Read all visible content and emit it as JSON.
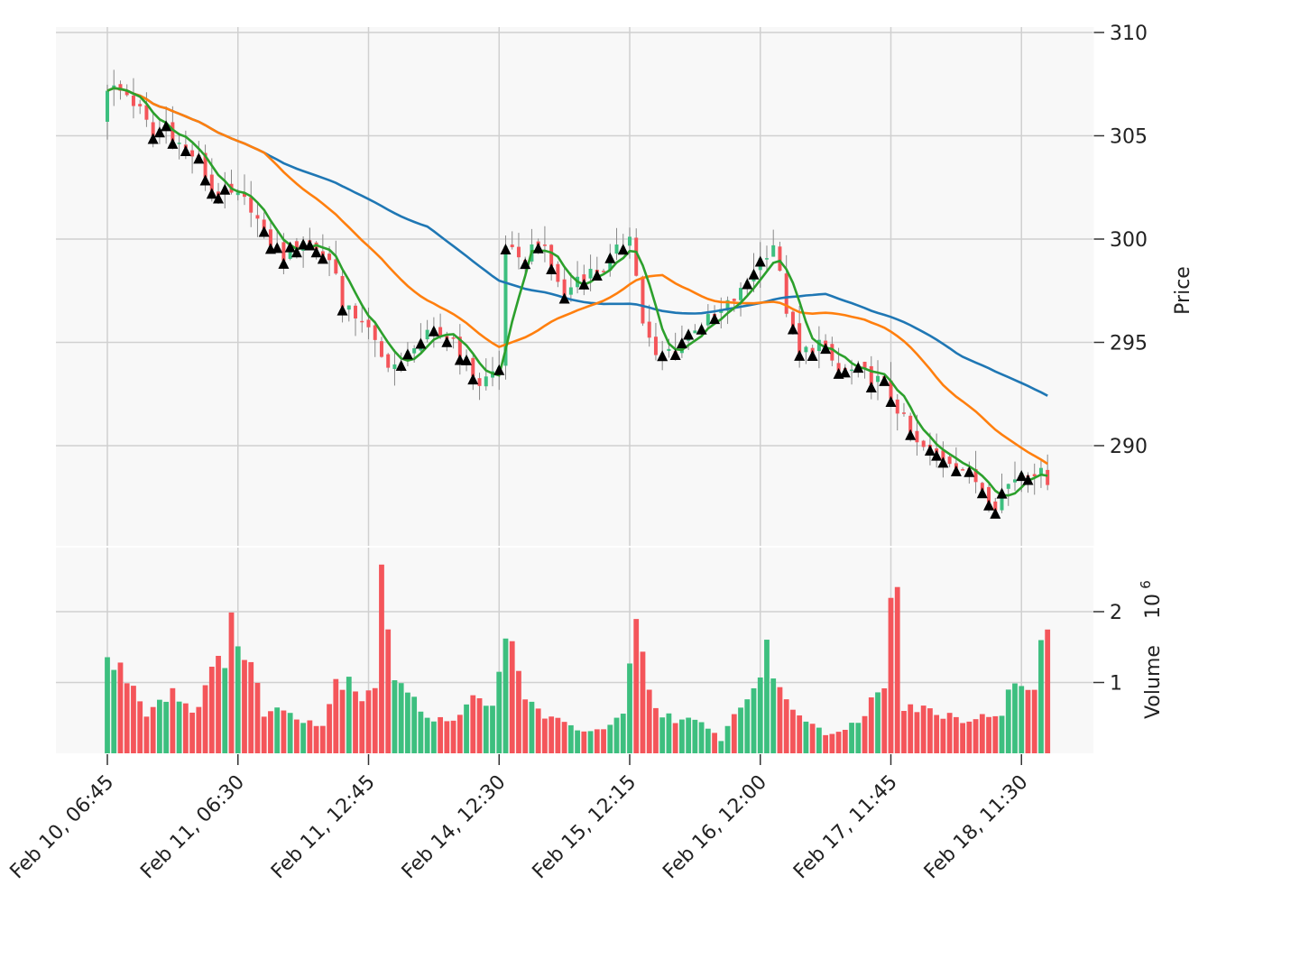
{
  "chart_data": {
    "type": "candlestick",
    "price_panel": {
      "ylabel": "Price",
      "ylim": [
        286,
        310
      ],
      "yticks": [
        290,
        295,
        300,
        305,
        310
      ],
      "grid": true
    },
    "volume_panel": {
      "ylabel": "Volume",
      "scale_label": "10",
      "scale_exponent": "6",
      "ylim": [
        0,
        2.6
      ],
      "yticks": [
        1,
        2
      ],
      "grid": true
    },
    "x_tick_labels": [
      "Feb 10, 06:45",
      "Feb 11, 06:30",
      "Feb 11, 12:45",
      "Feb 14, 12:30",
      "Feb 15, 12:15",
      "Feb 16, 12:00",
      "Feb 17, 11:45",
      "Feb 18, 11:30"
    ],
    "x_tick_indices": [
      0,
      20,
      40,
      60,
      80,
      100,
      120,
      140
    ],
    "num_bars": 145,
    "colors": {
      "up": "#3dbf7f",
      "down": "#f4555a",
      "ma_long": "#1f77b4",
      "ma_mid": "#ff7f0e",
      "ma_short": "#2ca02c",
      "marker": "#000000",
      "panel_bg": "#f8f8f8",
      "grid": "#d0d0d0"
    },
    "close_anchors": [
      [
        0,
        307.4
      ],
      [
        3,
        307.0
      ],
      [
        5,
        306.2
      ],
      [
        7,
        305.0
      ],
      [
        9,
        305.6
      ],
      [
        11,
        304.6
      ],
      [
        14,
        303.8
      ],
      [
        16,
        302.4
      ],
      [
        20,
        302.0
      ],
      [
        22,
        301.6
      ],
      [
        24,
        300.2
      ],
      [
        27,
        299.2
      ],
      [
        30,
        300.0
      ],
      [
        32,
        299.6
      ],
      [
        35,
        298.6
      ],
      [
        36,
        296.6
      ],
      [
        39,
        296.2
      ],
      [
        42,
        294.2
      ],
      [
        45,
        293.8
      ],
      [
        47,
        295.0
      ],
      [
        50,
        295.4
      ],
      [
        53,
        295.2
      ],
      [
        55,
        294.0
      ],
      [
        57,
        293.0
      ],
      [
        60,
        293.8
      ],
      [
        61,
        299.8
      ],
      [
        63,
        298.8
      ],
      [
        66,
        300.0
      ],
      [
        69,
        298.0
      ],
      [
        70,
        297.2
      ],
      [
        72,
        298.2
      ],
      [
        76,
        298.6
      ],
      [
        79,
        299.8
      ],
      [
        80,
        300.4
      ],
      [
        82,
        296.0
      ],
      [
        84,
        294.2
      ],
      [
        87,
        294.8
      ],
      [
        90,
        295.8
      ],
      [
        93,
        296.2
      ],
      [
        97,
        297.4
      ],
      [
        99,
        298.6
      ],
      [
        102,
        299.8
      ],
      [
        104,
        296.6
      ],
      [
        106,
        294.4
      ],
      [
        109,
        295.0
      ],
      [
        112,
        293.6
      ],
      [
        115,
        293.6
      ],
      [
        119,
        293.0
      ],
      [
        121,
        291.8
      ],
      [
        124,
        290.0
      ],
      [
        127,
        289.6
      ],
      [
        130,
        289.2
      ],
      [
        134,
        288.0
      ],
      [
        136,
        287.2
      ],
      [
        137,
        287.8
      ],
      [
        140,
        288.8
      ],
      [
        142,
        288.8
      ],
      [
        144,
        288.4
      ]
    ],
    "volume_anchors": [
      [
        0,
        1.3
      ],
      [
        3,
        1.1
      ],
      [
        6,
        0.6
      ],
      [
        10,
        0.9
      ],
      [
        13,
        0.6
      ],
      [
        18,
        1.4
      ],
      [
        19,
        2.2
      ],
      [
        20,
        1.5
      ],
      [
        22,
        1.2
      ],
      [
        24,
        0.6
      ],
      [
        28,
        0.6
      ],
      [
        30,
        0.5
      ],
      [
        33,
        0.4
      ],
      [
        35,
        1.0
      ],
      [
        37,
        1.1
      ],
      [
        39,
        0.8
      ],
      [
        41,
        1.0
      ],
      [
        42,
        2.4
      ],
      [
        43,
        1.9
      ],
      [
        44,
        1.1
      ],
      [
        47,
        0.7
      ],
      [
        50,
        0.5
      ],
      [
        54,
        0.5
      ],
      [
        57,
        0.9
      ],
      [
        59,
        0.6
      ],
      [
        61,
        1.5
      ],
      [
        62,
        1.5
      ],
      [
        64,
        0.8
      ],
      [
        66,
        0.6
      ],
      [
        70,
        0.4
      ],
      [
        75,
        0.3
      ],
      [
        79,
        0.5
      ],
      [
        81,
        1.8
      ],
      [
        82,
        1.3
      ],
      [
        84,
        0.6
      ],
      [
        87,
        0.5
      ],
      [
        91,
        0.4
      ],
      [
        94,
        0.2
      ],
      [
        97,
        0.7
      ],
      [
        99,
        0.9
      ],
      [
        101,
        1.4
      ],
      [
        102,
        1.2
      ],
      [
        104,
        0.7
      ],
      [
        107,
        0.5
      ],
      [
        110,
        0.3
      ],
      [
        113,
        0.3
      ],
      [
        116,
        0.6
      ],
      [
        119,
        1.0
      ],
      [
        120,
        2.5
      ],
      [
        121,
        2.7
      ],
      [
        122,
        0.7
      ],
      [
        126,
        0.6
      ],
      [
        131,
        0.5
      ],
      [
        134,
        0.5
      ],
      [
        137,
        0.6
      ],
      [
        139,
        1.0
      ],
      [
        141,
        0.8
      ],
      [
        142,
        1.0
      ],
      [
        143,
        1.7
      ],
      [
        144,
        1.6
      ]
    ],
    "marker_indices": [
      7,
      8,
      9,
      10,
      12,
      14,
      15,
      16,
      17,
      18,
      24,
      25,
      26,
      27,
      28,
      29,
      30,
      31,
      32,
      33,
      36,
      45,
      46,
      48,
      50,
      52,
      54,
      55,
      56,
      60,
      61,
      64,
      66,
      68,
      70,
      73,
      75,
      77,
      79,
      85,
      87,
      88,
      89,
      91,
      93,
      98,
      99,
      100,
      105,
      106,
      108,
      110,
      112,
      113,
      115,
      117,
      119,
      120,
      123,
      126,
      127,
      128,
      130,
      132,
      134,
      135,
      136,
      137,
      140,
      141
    ]
  }
}
